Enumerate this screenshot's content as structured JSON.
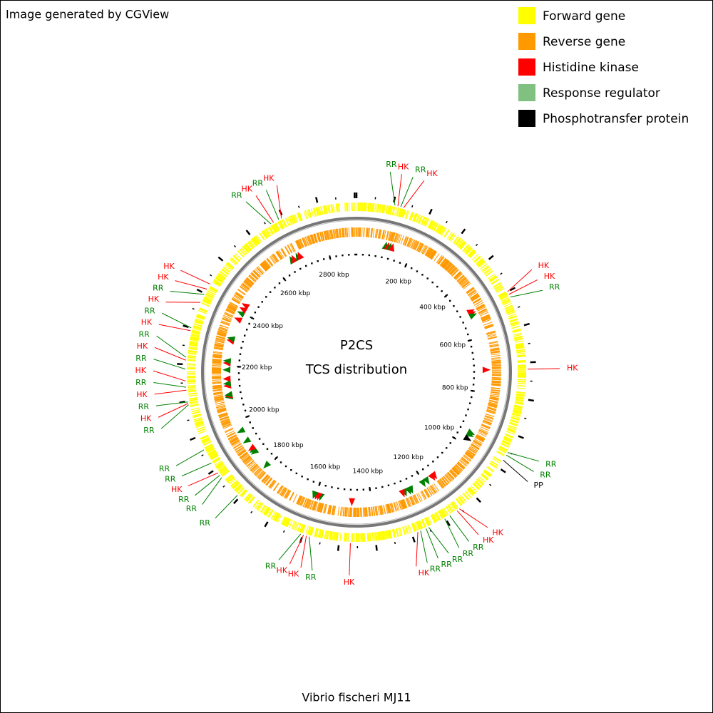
{
  "header": {
    "title": "Image generated by CGView"
  },
  "legend": [
    {
      "name": "Forward gene",
      "color": "#ffff00"
    },
    {
      "name": "Reverse gene",
      "color": "#ff9900"
    },
    {
      "name": "Histidine kinase",
      "color": "#ff0000"
    },
    {
      "name": "Response regulator",
      "color": "#80c080"
    },
    {
      "name": "Phosphotransfer protein",
      "color": "#000000"
    }
  ],
  "center": {
    "line1": "P2CS",
    "line2": "TCS distribution"
  },
  "footer": {
    "organism": "Vibrio fischeri MJ11"
  },
  "map": {
    "sequence_length": 2905,
    "ruler": [
      {
        "value": 200,
        "label": "200 kbp"
      },
      {
        "value": 400,
        "label": "400 kbp"
      },
      {
        "value": 600,
        "label": "600 kbp"
      },
      {
        "value": 800,
        "label": "800 kbp"
      },
      {
        "value": 1000,
        "label": "1000 kbp"
      },
      {
        "value": 1200,
        "label": "1200 kbp"
      },
      {
        "value": 1400,
        "label": "1400 kbp"
      },
      {
        "value": 1600,
        "label": "1600 kbp"
      },
      {
        "value": 1800,
        "label": "1800 kbp"
      },
      {
        "value": 2000,
        "label": "2000 kbp"
      },
      {
        "value": 2200,
        "label": "2200 kbp"
      },
      {
        "value": 2400,
        "label": "2400 kbp"
      },
      {
        "value": 2600,
        "label": "2600 kbp"
      },
      {
        "value": 2800,
        "label": "2800 kbp"
      }
    ],
    "features": [
      {
        "label": "RR",
        "position": 105,
        "color": "#008000"
      },
      {
        "label": "HK",
        "position": 113,
        "color": "#ff0000"
      },
      {
        "label": "RR",
        "position": 121,
        "color": "#008000"
      },
      {
        "label": "HK",
        "position": 129,
        "color": "#ff0000"
      },
      {
        "label": "HK",
        "position": 500,
        "color": "#ff0000"
      },
      {
        "label": "HK",
        "position": 508,
        "color": "#ff0000"
      },
      {
        "label": "RR",
        "position": 516,
        "color": "#008000"
      },
      {
        "label": "HK",
        "position": 718,
        "color": "#ff0000"
      },
      {
        "label": "RR",
        "position": 952,
        "color": "#008000"
      },
      {
        "label": "RR",
        "position": 960,
        "color": "#008000"
      },
      {
        "label": "PP",
        "position": 976,
        "color": "#000000"
      },
      {
        "label": "HK",
        "position": 1154,
        "color": "#ff0000"
      },
      {
        "label": "HK",
        "position": 1162,
        "color": "#ff0000"
      },
      {
        "label": "RR",
        "position": 1186,
        "color": "#008000"
      },
      {
        "label": "RR",
        "position": 1202,
        "color": "#008000"
      },
      {
        "label": "RR",
        "position": 1251,
        "color": "#008000"
      },
      {
        "label": "RR",
        "position": 1259,
        "color": "#008000"
      },
      {
        "label": "RR",
        "position": 1275,
        "color": "#008000"
      },
      {
        "label": "HK",
        "position": 1283,
        "color": "#ff0000"
      },
      {
        "label": "HK",
        "position": 1469,
        "color": "#ff0000"
      },
      {
        "label": "RR",
        "position": 1582,
        "color": "#008000"
      },
      {
        "label": "HK",
        "position": 1590,
        "color": "#ff0000"
      },
      {
        "label": "HK",
        "position": 1598,
        "color": "#ff0000"
      },
      {
        "label": "RR",
        "position": 1606,
        "color": "#008000"
      },
      {
        "label": "RR",
        "position": 1808,
        "color": "#008000"
      },
      {
        "label": "RR",
        "position": 1872,
        "color": "#008000"
      },
      {
        "label": "RR",
        "position": 1880,
        "color": "#008000"
      },
      {
        "label": "HK",
        "position": 1888,
        "color": "#ff0000"
      },
      {
        "label": "RR",
        "position": 1920,
        "color": "#008000"
      },
      {
        "label": "RR",
        "position": 1961,
        "color": "#008000"
      },
      {
        "label": "RR",
        "position": 2090,
        "color": "#008000"
      },
      {
        "label": "HK",
        "position": 2094,
        "color": "#ff0000"
      },
      {
        "label": "RR",
        "position": 2098,
        "color": "#008000"
      },
      {
        "label": "HK",
        "position": 2130,
        "color": "#ff0000"
      },
      {
        "label": "RR",
        "position": 2138,
        "color": "#008000"
      },
      {
        "label": "HK",
        "position": 2155,
        "color": "#ff0000"
      },
      {
        "label": "RR",
        "position": 2187,
        "color": "#008000"
      },
      {
        "label": "HK",
        "position": 2211,
        "color": "#ff0000"
      },
      {
        "label": "RR",
        "position": 2219,
        "color": "#008000"
      },
      {
        "label": "HK",
        "position": 2292,
        "color": "#ff0000"
      },
      {
        "label": "RR",
        "position": 2300,
        "color": "#008000"
      },
      {
        "label": "HK",
        "position": 2373,
        "color": "#ff0000"
      },
      {
        "label": "RR",
        "position": 2397,
        "color": "#008000"
      },
      {
        "label": "HK",
        "position": 2413,
        "color": "#ff0000"
      },
      {
        "label": "HK",
        "position": 2429,
        "color": "#ff0000"
      },
      {
        "label": "RR",
        "position": 2663,
        "color": "#008000"
      },
      {
        "label": "HK",
        "position": 2671,
        "color": "#ff0000"
      },
      {
        "label": "RR",
        "position": 2687,
        "color": "#008000"
      },
      {
        "label": "HK",
        "position": 2695,
        "color": "#ff0000"
      }
    ]
  }
}
